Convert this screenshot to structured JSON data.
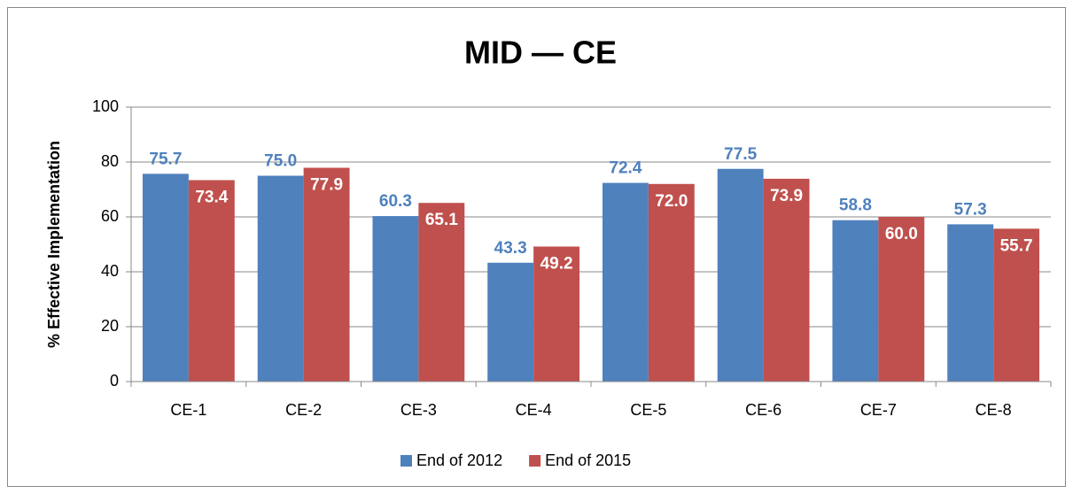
{
  "chart_data": {
    "type": "bar",
    "title": "MID — CE",
    "y_label": "% Effective Implementation",
    "categories": [
      "CE-1",
      "CE-2",
      "CE-3",
      "CE-4",
      "CE-5",
      "CE-6",
      "CE-7",
      "CE-8"
    ],
    "series": [
      {
        "name": "End of 2012",
        "color": "#4f81bd",
        "values": [
          75.7,
          75.0,
          60.3,
          43.3,
          72.4,
          77.5,
          58.8,
          57.3
        ],
        "value_labels": [
          "75.7",
          "75.0",
          "60.3",
          "43.3",
          "72.4",
          "77.5",
          "58.8",
          "57.3"
        ]
      },
      {
        "name": "End of 2015",
        "color": "#c0504d",
        "values": [
          73.4,
          77.9,
          65.1,
          49.2,
          72.0,
          73.9,
          60.0,
          55.7
        ],
        "value_labels": [
          "73.4",
          "77.9",
          "65.1",
          "49.2",
          "72.0",
          "73.9",
          "60.0",
          "55.7"
        ]
      }
    ],
    "ylim": [
      0,
      100
    ],
    "yticks": [
      0,
      20,
      40,
      60,
      80,
      100
    ],
    "grid": true,
    "legend": "bottom"
  }
}
